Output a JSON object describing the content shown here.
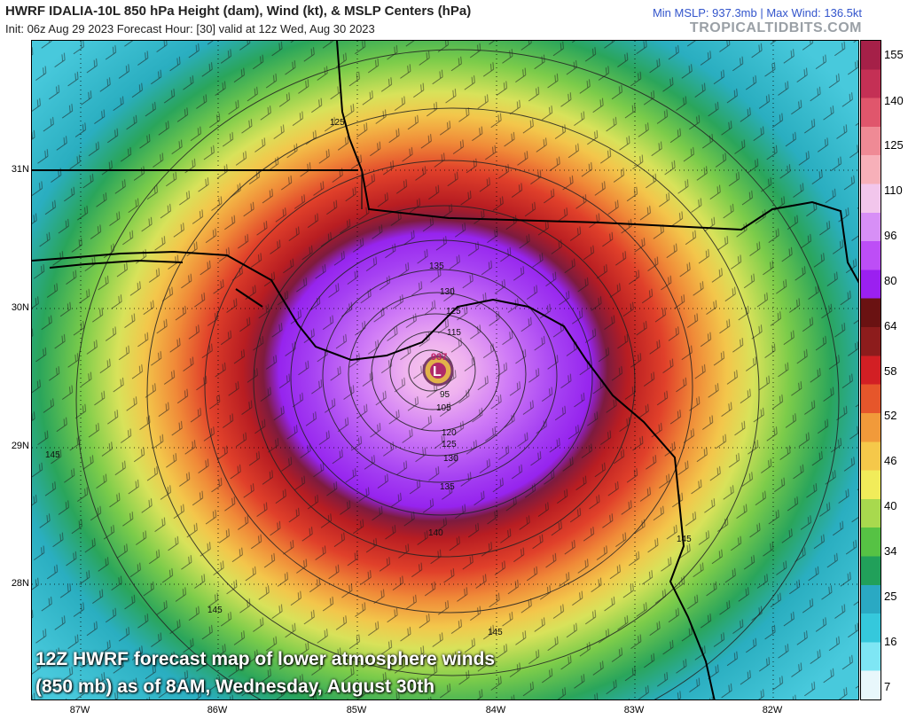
{
  "header": {
    "title": "HWRF IDALIA-10L 850 hPa Height (dam), Wind (kt), & MSLP Centers (hPa)",
    "init_line": "Init: 06z Aug 29 2023   Forecast Hour: [30]   valid at 12z Wed, Aug 30 2023",
    "stats": "Min MSLP: 937.3mb  |  Max Wind: 136.5kt",
    "brand": "TROPICALTIDBITS.COM"
  },
  "map": {
    "lat_labels": [
      "31N",
      "30N",
      "29N",
      "28N"
    ],
    "lon_labels": [
      "87W",
      "86W",
      "85W",
      "84W",
      "83W",
      "82W"
    ],
    "contour_labels": [
      "125",
      "135",
      "130",
      "125",
      "115",
      "937",
      "L",
      "95",
      "105",
      "120",
      "125",
      "130",
      "135",
      "140",
      "145",
      "145",
      "145",
      "145"
    ],
    "center_pressure": "937",
    "center_letter": "L"
  },
  "colorbar": {
    "labels": [
      "155",
      "140",
      "125",
      "110",
      "96",
      "80",
      "64",
      "58",
      "52",
      "46",
      "40",
      "34",
      "25",
      "16",
      "7"
    ],
    "colors": [
      "#e8f7fb",
      "#7ee6f4",
      "#35c8dc",
      "#2aa9c3",
      "#21a05a",
      "#56c244",
      "#a8d94e",
      "#f1ec5a",
      "#f5c84a",
      "#f19a3a",
      "#e6562b",
      "#d21f24",
      "#8d1c1c",
      "#6a1212",
      "#9b20f0",
      "#bd4ef6",
      "#d78ff6",
      "#f2c6ec",
      "#f7b0b9",
      "#ef8a95",
      "#e0566c",
      "#c43055",
      "#a52048"
    ]
  },
  "caption": {
    "line1": "12Z HWRF forecast map of lower atmosphere winds",
    "line2": "(850 mb) as of 8AM, Wednesday, August 30th"
  }
}
